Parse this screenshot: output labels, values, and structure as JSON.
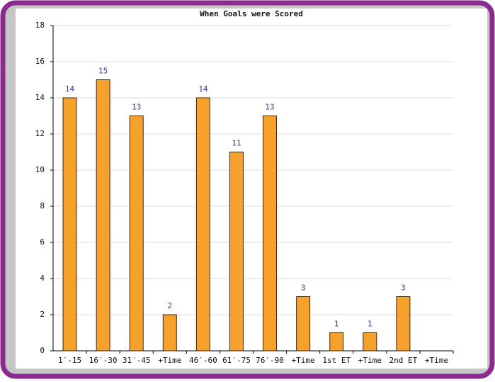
{
  "chart_data": {
    "type": "bar",
    "title": "When Goals were Scored",
    "categories": [
      "1′-15",
      "16′-30",
      "31′-45",
      "+Time",
      "46′-60",
      "61′-75",
      "76′-90",
      "+Time",
      "1st ET",
      "+Time",
      "2nd ET",
      "+Time"
    ],
    "values": [
      14,
      15,
      13,
      2,
      14,
      11,
      13,
      3,
      1,
      1,
      3,
      0
    ],
    "color": "#f5a12c",
    "ylim": [
      0,
      18
    ],
    "yticks": [
      0,
      2,
      4,
      6,
      8,
      10,
      12,
      14,
      16,
      18
    ],
    "grid": true
  }
}
